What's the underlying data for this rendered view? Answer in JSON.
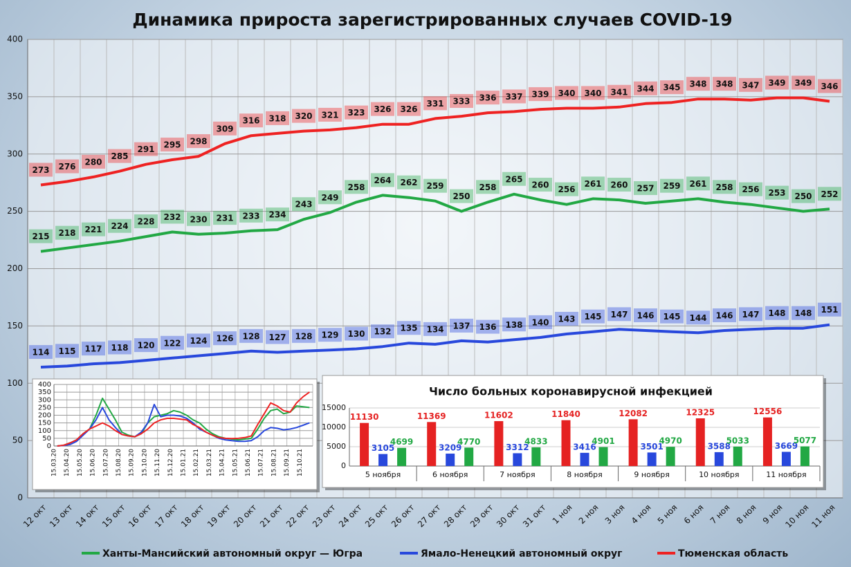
{
  "chart_data": [
    {
      "type": "line",
      "title": "Динамика прироста зарегистрированных случаев COVID-19",
      "categories": [
        "12 окт",
        "13 окт",
        "14 окт",
        "15 окт",
        "16 окт",
        "17 окт",
        "18 окт",
        "19 окт",
        "20 окт",
        "21 окт",
        "22 окт",
        "23 окт",
        "24 окт",
        "25 окт",
        "26 окт",
        "27 окт",
        "28 окт",
        "29 окт",
        "30 окт",
        "31 окт",
        "1 ноя",
        "2 ноя",
        "3 ноя",
        "4 ноя",
        "5 ноя",
        "6 ноя",
        "7 ноя",
        "8 ноя",
        "9 ноя",
        "10 ноя",
        "11 ноя"
      ],
      "series": [
        {
          "name": "Ханты-Мансийский автономный округ — Югра",
          "color": "#22a844",
          "values": [
            215,
            218,
            221,
            224,
            228,
            232,
            230,
            231,
            233,
            234,
            243,
            249,
            258,
            264,
            262,
            259,
            250,
            258,
            265,
            260,
            256,
            261,
            260,
            257,
            259,
            261,
            258,
            256,
            253,
            250,
            252
          ]
        },
        {
          "name": "Ямало-Ненецкий автономный округ",
          "color": "#2848dc",
          "values": [
            114,
            115,
            117,
            118,
            120,
            122,
            124,
            126,
            128,
            127,
            128,
            129,
            130,
            132,
            135,
            134,
            137,
            136,
            138,
            140,
            143,
            145,
            147,
            146,
            145,
            144,
            146,
            147,
            148,
            148,
            151
          ]
        },
        {
          "name": "Тюменская область",
          "color": "#ee2222",
          "values": [
            273,
            276,
            280,
            285,
            291,
            295,
            298,
            309,
            316,
            318,
            320,
            321,
            323,
            326,
            326,
            331,
            333,
            336,
            337,
            339,
            340,
            340,
            341,
            344,
            345,
            348,
            348,
            347,
            349,
            349,
            346
          ]
        }
      ],
      "ylim": [
        0,
        400
      ],
      "yticks": [
        0,
        50,
        100,
        150,
        200,
        250,
        300,
        350,
        400
      ],
      "grid": true,
      "legend": "bottom"
    },
    {
      "type": "line",
      "categories": [
        "15.03.20",
        null,
        "15.04.20",
        null,
        "15.05.20",
        null,
        "15.06.20",
        null,
        "15.07.20",
        null,
        "15.08.20",
        null,
        "15.09.20",
        null,
        "15.10.20",
        null,
        "15.11.20",
        null,
        "15.12.20",
        null,
        "15.01.21",
        null,
        "15.02.21",
        null,
        "15.03.21",
        null,
        "15.04.21",
        null,
        "15.05.21",
        null,
        "15.06.21",
        null,
        "15.07.21",
        null,
        "15.08.21",
        null,
        "15.09.21",
        null,
        "15.10.21",
        null
      ],
      "series": [
        {
          "color": "#22a844",
          "values": [
            0,
            5,
            20,
            40,
            80,
            110,
            200,
            310,
            240,
            170,
            90,
            70,
            60,
            80,
            150,
            190,
            200,
            210,
            230,
            220,
            200,
            170,
            150,
            110,
            80,
            60,
            50,
            45,
            40,
            45,
            50,
            110,
            180,
            230,
            240,
            210,
            220,
            260,
            255,
            250
          ]
        },
        {
          "color": "#2848dc",
          "values": [
            0,
            3,
            10,
            30,
            70,
            110,
            170,
            250,
            170,
            120,
            75,
            65,
            60,
            90,
            150,
            270,
            190,
            200,
            200,
            195,
            180,
            150,
            110,
            90,
            70,
            50,
            40,
            35,
            30,
            30,
            35,
            60,
            100,
            120,
            115,
            105,
            110,
            120,
            135,
            150
          ]
        },
        {
          "color": "#ee2222",
          "values": [
            0,
            5,
            20,
            40,
            80,
            110,
            130,
            150,
            130,
            100,
            75,
            65,
            60,
            80,
            110,
            150,
            170,
            180,
            180,
            175,
            170,
            140,
            120,
            90,
            70,
            55,
            50,
            48,
            50,
            55,
            65,
            140,
            210,
            280,
            260,
            230,
            220,
            280,
            320,
            350
          ]
        }
      ],
      "ylim": [
        0,
        400
      ],
      "yticks": [
        0,
        50,
        100,
        150,
        200,
        250,
        300,
        350,
        400
      ]
    },
    {
      "type": "bar",
      "title": "Число больных коронавирусной  инфекцией",
      "categories": [
        "5 ноября",
        "6 ноября",
        "7 ноября",
        "8 ноября",
        "9 ноября",
        "10 ноября",
        "11 ноября"
      ],
      "series": [
        {
          "color": "#e52222",
          "values": [
            11130,
            11369,
            11602,
            11840,
            12082,
            12325,
            12556
          ]
        },
        {
          "color": "#2848dc",
          "values": [
            3105,
            3209,
            3312,
            3416,
            3501,
            3588,
            3669
          ]
        },
        {
          "color": "#22a844",
          "values": [
            4699,
            4770,
            4833,
            4901,
            4970,
            5033,
            5077
          ]
        }
      ],
      "ylim": [
        0,
        15000
      ],
      "yticks": [
        0,
        5000,
        10000,
        15000
      ]
    }
  ]
}
